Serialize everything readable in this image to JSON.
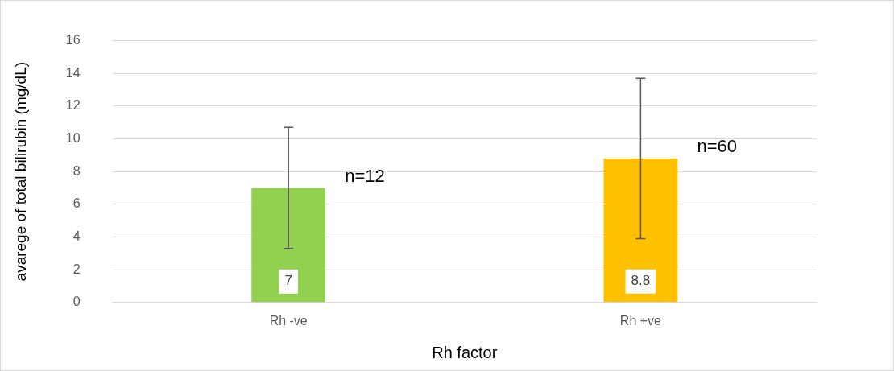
{
  "chart_data": {
    "type": "bar",
    "xlabel": "Rh factor",
    "ylabel": "avarege of total bilirubin (mg/dL)",
    "categories": [
      "Rh -ve",
      "Rh +ve"
    ],
    "values": [
      7,
      8.8
    ],
    "colors": [
      "#92d050",
      "#ffc000"
    ],
    "errors": [
      3.7,
      4.9
    ],
    "data_labels": true,
    "annotations": [
      "n=12",
      "n=60"
    ],
    "ylim": [
      0,
      16
    ],
    "yticks": [
      0,
      2,
      4,
      6,
      8,
      10,
      12,
      14,
      16
    ],
    "grid": "y",
    "legend": false
  }
}
